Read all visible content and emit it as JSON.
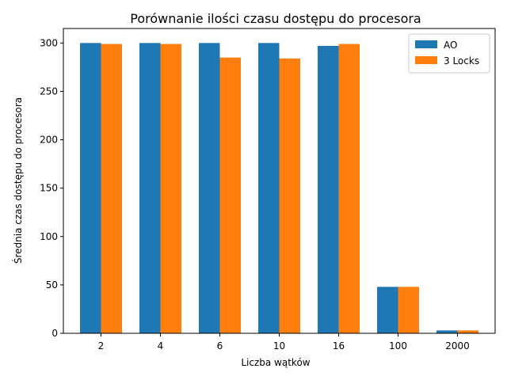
{
  "chart_data": {
    "type": "bar",
    "title": "Porównanie ilości czasu dostępu do procesora",
    "xlabel": "Liczba wątków",
    "ylabel": "Średnia czas dostępu do procesora",
    "categories": [
      "2",
      "4",
      "6",
      "10",
      "16",
      "100",
      "2000"
    ],
    "series": [
      {
        "name": "AO",
        "values": [
          300,
          300,
          300,
          300,
          297,
          48,
          3
        ],
        "color": "#1f77b4"
      },
      {
        "name": "3 Locks",
        "values": [
          299,
          299,
          285,
          284,
          299,
          48,
          3
        ],
        "color": "#ff7f0e"
      }
    ],
    "ylim": [
      0,
      315
    ],
    "yticks": [
      0,
      50,
      100,
      150,
      200,
      250,
      300
    ],
    "grid": false,
    "legend_position": "top-right"
  }
}
